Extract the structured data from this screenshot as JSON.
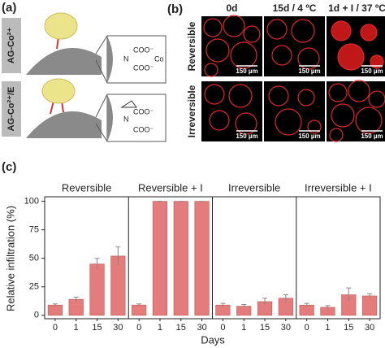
{
  "panel_a": {
    "label": "(a)",
    "rows": [
      {
        "label": "AG-Co²⁺",
        "formula": [
          "N",
          "COO⁻",
          "COO⁻",
          "Co"
        ]
      },
      {
        "label": "AG-Co²⁺/E",
        "formula": [
          "N",
          "COO⁻",
          "COO⁻"
        ]
      }
    ]
  },
  "panel_b": {
    "label": "(b)",
    "columns": [
      "0d",
      "15d / 4 ºC",
      "1d + I / 37 ºC"
    ],
    "rows": [
      "Reversible",
      "Irreversible"
    ],
    "scale_bar": "150 µm"
  },
  "chart_data": {
    "type": "bar",
    "label": "(c)",
    "y_label": "Relative infiltration (%)",
    "x_label": "Days",
    "color": "#e47c7c",
    "ylim": [
      -3,
      104
    ],
    "yticks": [
      0,
      25,
      50,
      75,
      100
    ],
    "groups": [
      {
        "title": "Reversible",
        "categories": [
          "0",
          "1",
          "15",
          "30"
        ],
        "values": [
          9,
          14,
          45,
          52
        ],
        "errors": [
          1,
          2,
          5,
          8
        ]
      },
      {
        "title": "Reversible + I",
        "categories": [
          "0",
          "1",
          "15",
          "30"
        ],
        "values": [
          9,
          100,
          100,
          100
        ],
        "errors": [
          1,
          0,
          0,
          0
        ]
      },
      {
        "title": "Irreversible",
        "categories": [
          "0",
          "1",
          "15",
          "30"
        ],
        "values": [
          9,
          8,
          12,
          15
        ],
        "errors": [
          1.5,
          1.5,
          3,
          3
        ]
      },
      {
        "title": "Irreversible + I",
        "categories": [
          "0",
          "1",
          "15",
          "30"
        ],
        "values": [
          9,
          7,
          18,
          17
        ],
        "errors": [
          1.5,
          1.5,
          6,
          2
        ]
      }
    ]
  }
}
